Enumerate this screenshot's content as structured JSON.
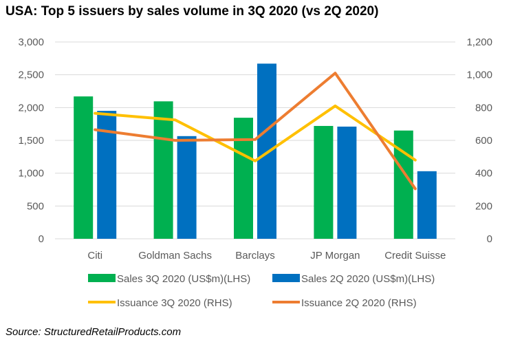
{
  "title": "USA: Top 5 issuers by sales volume in 3Q 2020 (vs 2Q 2020)",
  "source": "Source: StructuredRetailProducts.com",
  "chart_data": {
    "type": "bar",
    "categories": [
      "Citi",
      "Goldman Sachs",
      "Barclays",
      "JP Morgan",
      "Credit Suisse"
    ],
    "y_left": {
      "ticks": [
        "0",
        "500",
        "1,000",
        "1,500",
        "2,000",
        "2,500",
        "3,000"
      ],
      "ylim": [
        0,
        3000
      ]
    },
    "y_right": {
      "ticks": [
        "0",
        "200",
        "400",
        "600",
        "800",
        "1,000",
        "1,200"
      ],
      "ylim": [
        0,
        1200
      ]
    },
    "grid": true,
    "legend_position": "bottom",
    "series": [
      {
        "name": "Sales 3Q 2020 (US$m)(LHS)",
        "type": "bar",
        "axis": "left",
        "color": "#00B050",
        "values": [
          2170,
          2095,
          1845,
          1720,
          1650
        ]
      },
      {
        "name": "Sales 2Q 2020 (US$m)(LHS)",
        "type": "bar",
        "axis": "left",
        "color": "#0070C0",
        "values": [
          1950,
          1565,
          2670,
          1710,
          1030
        ]
      },
      {
        "name": "Issuance 3Q 2020 (RHS)",
        "type": "line",
        "axis": "right",
        "color": "#FFC000",
        "values": [
          765,
          725,
          475,
          810,
          480
        ]
      },
      {
        "name": "Issuance 2Q 2020 (RHS)",
        "type": "line",
        "axis": "right",
        "color": "#ED7D31",
        "values": [
          665,
          600,
          605,
          1010,
          305
        ]
      }
    ]
  }
}
